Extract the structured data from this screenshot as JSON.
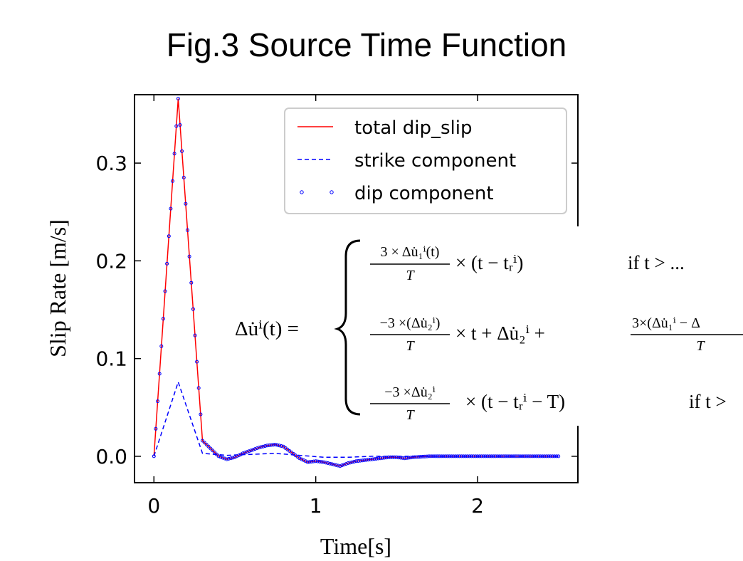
{
  "page": {
    "title": "Fig.3 Source Time Function"
  },
  "chart_data": {
    "type": "line",
    "title": "Fig.3 Source Time Function",
    "xlabel": "Time[s]",
    "ylabel": "Slip Rate [m/s]",
    "xlim": [
      -0.12,
      2.62
    ],
    "ylim": [
      -0.027,
      0.37
    ],
    "xticks": [
      0,
      1,
      2
    ],
    "xtick_labels": [
      "0",
      "1",
      "2"
    ],
    "yticks": [
      0.0,
      0.1,
      0.2,
      0.3
    ],
    "ytick_labels": [
      "0.0",
      "0.1",
      "0.2",
      "0.3"
    ],
    "grid": false,
    "legend_position": "upper-right",
    "series": [
      {
        "name": "total dip_slip",
        "style": "solid",
        "color": "#ff0000",
        "x": [
          0,
          0.15,
          0.3,
          0.35,
          0.4,
          0.45,
          0.5,
          0.55,
          0.6,
          0.65,
          0.7,
          0.75,
          0.8,
          0.85,
          0.9,
          0.95,
          1.0,
          1.05,
          1.1,
          1.15,
          1.2,
          1.25,
          1.3,
          1.35,
          1.4,
          1.45,
          1.5,
          1.55,
          1.6,
          1.7,
          1.8,
          1.9,
          2.0,
          2.1,
          2.2,
          2.3,
          2.4,
          2.5
        ],
        "y": [
          0,
          0.366,
          0.016,
          0.008,
          0.0,
          -0.003,
          -0.001,
          0.003,
          0.006,
          0.009,
          0.011,
          0.012,
          0.01,
          0.004,
          -0.002,
          -0.006,
          -0.005,
          -0.006,
          -0.008,
          -0.01,
          -0.007,
          -0.005,
          -0.004,
          -0.003,
          -0.002,
          -0.001,
          -0.001,
          -0.002,
          -0.001,
          0.0,
          0.0,
          0.0,
          0.0,
          0.0,
          0.0,
          0.0,
          0.0,
          0.0
        ]
      },
      {
        "name": "strike component",
        "style": "dashed",
        "color": "#0000ff",
        "x": [
          0,
          0.15,
          0.3,
          0.45,
          0.6,
          0.75,
          0.9,
          1.05,
          1.2,
          1.35,
          1.5,
          1.7,
          1.9,
          2.1,
          2.3,
          2.5
        ],
        "y": [
          0,
          0.076,
          0.003,
          0.001,
          0.002,
          0.003,
          0.001,
          -0.001,
          -0.001,
          0.0,
          0.0,
          0.0,
          0.0,
          0.0,
          0.0,
          0.0
        ]
      },
      {
        "name": "dip component",
        "style": "dotted",
        "color": "#0000ff",
        "x": [
          0,
          0.15,
          0.3,
          0.35,
          0.4,
          0.45,
          0.5,
          0.55,
          0.6,
          0.65,
          0.7,
          0.75,
          0.8,
          0.85,
          0.9,
          0.95,
          1.0,
          1.05,
          1.1,
          1.15,
          1.2,
          1.25,
          1.3,
          1.35,
          1.4,
          1.45,
          1.5,
          1.55,
          1.6,
          1.7,
          1.8,
          1.9,
          2.0,
          2.1,
          2.2,
          2.3,
          2.4,
          2.5
        ],
        "y": [
          0,
          0.366,
          0.016,
          0.008,
          0.0,
          -0.003,
          -0.001,
          0.003,
          0.006,
          0.009,
          0.011,
          0.012,
          0.01,
          0.004,
          -0.002,
          -0.006,
          -0.005,
          -0.006,
          -0.008,
          -0.01,
          -0.007,
          -0.005,
          -0.004,
          -0.003,
          -0.002,
          -0.001,
          -0.001,
          -0.002,
          -0.001,
          0.0,
          0.0,
          0.0,
          0.0,
          0.0,
          0.0,
          0.0,
          0.0,
          0.0
        ]
      }
    ]
  },
  "equation": {
    "lhs": "Δu̇ⁱ(t) =",
    "rows": [
      {
        "frac_num": "3 × Δu̇₁ⁱ(t)",
        "frac_den": "T",
        "expr": "× (t − tᵣⁱ)",
        "condition": "if t > ..."
      },
      {
        "frac_num": "−3 ×(Δu̇₂ⁱ)",
        "frac_den": "T",
        "expr": "× t  + Δu̇₂ⁱ  +",
        "frac2_num": "3×(Δu̇₁ⁱ − Δ",
        "frac2_den": "T"
      },
      {
        "frac_num": "−3 ×Δu̇₂ⁱ",
        "frac_den": "T",
        "expr": "× (t  −  tᵣⁱ  − T)",
        "condition": "if t >"
      }
    ]
  }
}
